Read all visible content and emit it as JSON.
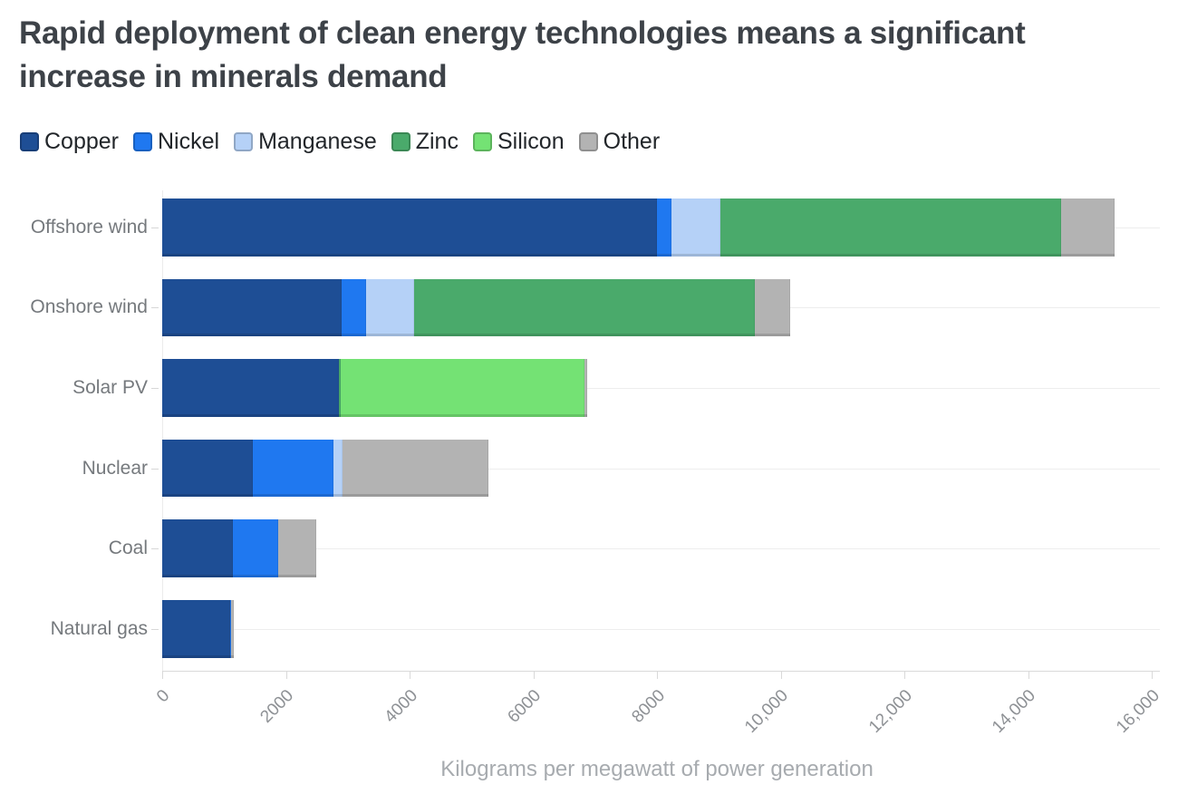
{
  "chart_data": {
    "type": "bar",
    "orientation": "horizontal",
    "stacked": true,
    "title": "Rapid deployment of clean energy technologies means a significant increase in minerals demand",
    "xlabel": "Kilograms per megawatt of power generation",
    "categories": [
      "Offshore wind",
      "Onshore wind",
      "Solar PV",
      "Nuclear",
      "Coal",
      "Natural gas"
    ],
    "series": [
      {
        "name": "Copper",
        "color": "#1e4e95",
        "values": [
          8000,
          2900,
          2850,
          1470,
          1150,
          1100
        ]
      },
      {
        "name": "Nickel",
        "color": "#1f78f0",
        "values": [
          240,
          400,
          0,
          1300,
          720,
          16
        ]
      },
      {
        "name": "Manganese",
        "color": "#b5d1f7",
        "values": [
          790,
          780,
          0,
          150,
          0,
          0
        ]
      },
      {
        "name": "Zinc",
        "color": "#4aaa6b",
        "values": [
          5500,
          5500,
          30,
          0,
          0,
          0
        ]
      },
      {
        "name": "Silicon",
        "color": "#74e274",
        "values": [
          0,
          0,
          3950,
          0,
          0,
          0
        ]
      },
      {
        "name": "Other",
        "color": "#b3b3b3",
        "values": [
          870,
          580,
          40,
          2350,
          620,
          48
        ]
      }
    ],
    "totals": [
      15400,
      10160,
      6870,
      5270,
      2490,
      1164
    ],
    "xlim": [
      0,
      16000
    ],
    "x_ticks": [
      {
        "value": 0,
        "label": "0"
      },
      {
        "value": 2000,
        "label": "2000"
      },
      {
        "value": 4000,
        "label": "4000"
      },
      {
        "value": 6000,
        "label": "6000"
      },
      {
        "value": 8000,
        "label": "8000"
      },
      {
        "value": 10000,
        "label": "10,000"
      },
      {
        "value": 12000,
        "label": "12,000"
      },
      {
        "value": 14000,
        "label": "14,000"
      },
      {
        "value": 16000,
        "label": "16,000"
      }
    ],
    "legend": [
      "Copper",
      "Nickel",
      "Manganese",
      "Zinc",
      "Silicon",
      "Other"
    ],
    "legend_position": "top",
    "grid": {
      "vertical_gridlines": false,
      "row_guides": true
    }
  },
  "colors": {
    "title_text": "#3d4248",
    "legend_text": "#22262a",
    "category_label": "#75797d",
    "tick_label": "#8e9195",
    "axis_label": "#a7abaf",
    "axis_line": "#d9d9d9",
    "row_guide": "#ededed"
  }
}
